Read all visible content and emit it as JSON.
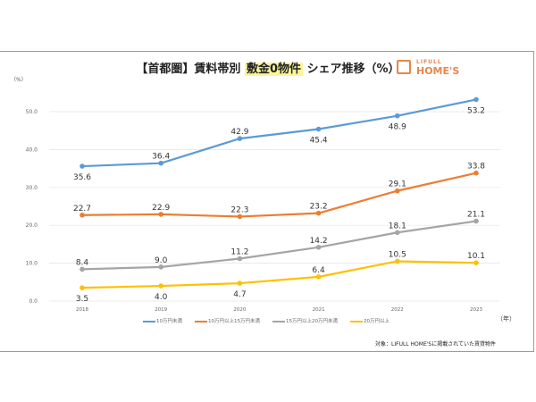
{
  "chart_data": {
    "type": "line",
    "title_parts": [
      "【首都圏】賃料帯別 ",
      "敷金0物件",
      " シェア推移（%）"
    ],
    "ylabel": "（%）",
    "xlabel": "（年）",
    "x": [
      "2018",
      "2019",
      "2020",
      "2021",
      "2022",
      "2023"
    ],
    "yticks": [
      "0.0",
      "10.0",
      "20.0",
      "30.0",
      "40.0",
      "50.0"
    ],
    "ylim": [
      0,
      50
    ],
    "grid": true,
    "legend_position": "bottom",
    "series": [
      {
        "name": "10万円未満",
        "color": "#5b9bd5",
        "values": [
          35.6,
          36.4,
          42.9,
          45.4,
          48.9,
          53.2
        ]
      },
      {
        "name": "10万円以上15万円未満",
        "color": "#ed7d31",
        "values": [
          22.7,
          22.9,
          22.3,
          23.2,
          29.1,
          33.8
        ]
      },
      {
        "name": "15万円以上20万円未満",
        "color": "#a5a5a5",
        "values": [
          8.4,
          9.0,
          11.2,
          14.2,
          18.1,
          21.1
        ]
      },
      {
        "name": "20万円以上",
        "color": "#ffc000",
        "values": [
          3.5,
          4.0,
          4.7,
          6.4,
          10.5,
          10.1
        ]
      }
    ]
  },
  "logo": {
    "line1": "LIFULL",
    "line2": "HOME'S"
  },
  "note": "対象：LIFULL HOME'Sに掲載されていた賃貸物件"
}
